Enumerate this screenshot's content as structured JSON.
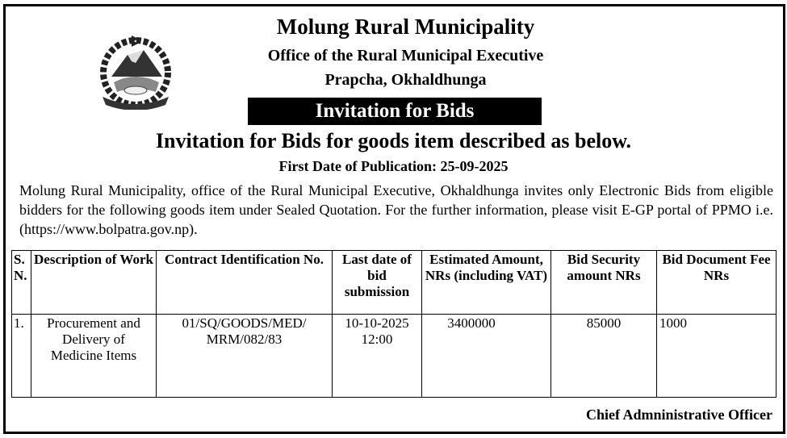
{
  "header": {
    "title": "Molung Rural Municipality",
    "office": "Office of the Rural Municipal Executive",
    "location": "Prapcha, Okhaldhunga",
    "banner": "Invitation for Bids"
  },
  "notice": {
    "heading": "Invitation for Bids for goods item described as below.",
    "publication": "First Date of Publication: 25-09-2025",
    "body": "Molung Rural Municipality, office of the Rural Municipal Executive, Okhaldhunga invites only Electronic Bids from eligible bidders for the following goods item under Sealed Quotation. For the further information, please visit E-GP portal of PPMO i.e. (https://www.bolpatra.gov.np)."
  },
  "table": {
    "headers": [
      "S. N.",
      "Description of Work",
      "Contract Identification No.",
      "Last date of bid submission",
      "Estimated Amount, NRs (including VAT)",
      "Bid Security amount NRs",
      "Bid Document Fee NRs"
    ],
    "rows": [
      [
        "1.",
        "Procurement and Delivery of Medicine Items",
        "01/SQ/GOODS/MED/ MRM/082/83",
        "10-10-2025 12:00",
        "3400000",
        "85000",
        "1000"
      ]
    ]
  },
  "footer": {
    "signatory": "Chief Admninistrative Officer"
  },
  "emblem": {
    "icon": "nepal-government-emblem-icon"
  }
}
